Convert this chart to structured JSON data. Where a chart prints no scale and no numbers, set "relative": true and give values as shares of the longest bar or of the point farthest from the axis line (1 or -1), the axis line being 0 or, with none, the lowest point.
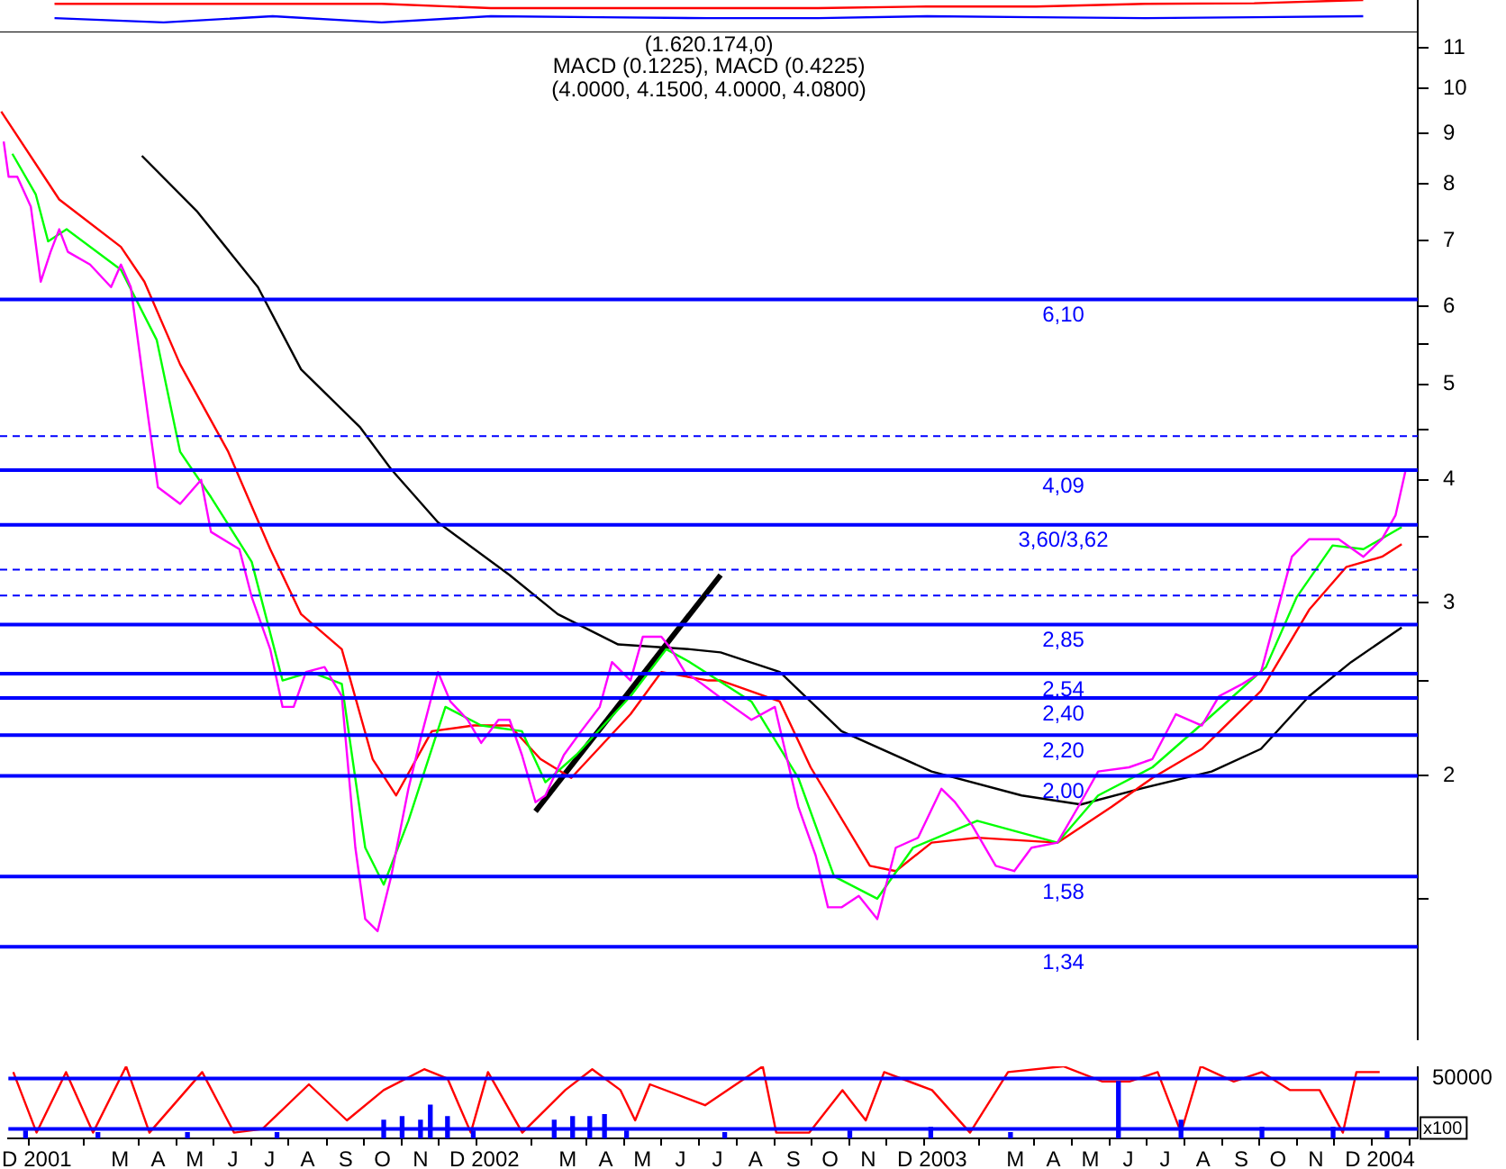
{
  "chart_data": [
    {
      "type": "line",
      "relative": true,
      "tick_labels": false,
      "grid": false,
      "legend": false,
      "categories": [
        null,
        null,
        null,
        null,
        null,
        null,
        null,
        null,
        null,
        null,
        null,
        null,
        null
      ],
      "series": [
        {
          "color": "#ff0000",
          "values": [
            0.88,
            0.88,
            0.88,
            0.88,
            0.75,
            0.75,
            0.75,
            0.75,
            0.8,
            0.8,
            0.88,
            0.9,
            1
          ]
        },
        {
          "color": "#0000ff",
          "values": [
            0.44,
            0.31,
            0.5,
            0.31,
            0.5,
            0.47,
            0.44,
            0.44,
            0.5,
            0.47,
            0.44,
            0.47,
            0.5
          ]
        }
      ]
    },
    {
      "type": "line",
      "title": "(4.0000, 4.1500, 4.0000, 4.0800)",
      "annotations": [
        "(1.620.174,0)",
        "MACD (0.1225), MACD (0.4225)"
      ],
      "log": true,
      "grid": false,
      "legend": false,
      "tick_labels": "y",
      "xlim": [
        "2000-11-30",
        "2004-01-23"
      ],
      "ylim": [
        1.08,
        11.4
      ],
      "yticks": [
        {
          "value": 1.5,
          "label": null
        },
        2,
        {
          "value": 2.5,
          "label": null
        },
        3,
        {
          "value": 3.5,
          "label": null
        },
        4,
        {
          "value": 4.5,
          "label": null
        },
        5,
        {
          "value": 5.5,
          "label": null
        },
        6,
        7,
        8,
        9,
        10,
        11
      ],
      "ref_lines": [
        {
          "axis": "y",
          "value": 6.1,
          "label": "6,10",
          "color": "#0000ff"
        },
        {
          "axis": "y",
          "value": 4.43,
          "color": "#0000ff",
          "line_style": "dashed"
        },
        {
          "axis": "y",
          "value": 4.09,
          "label": "4,09",
          "color": "#0000ff"
        },
        {
          "axis": "y",
          "value": 3.6,
          "label": "3,60/3,62",
          "color": "#0000ff"
        },
        {
          "axis": "y",
          "value": 3.24,
          "color": "#0000ff",
          "line_style": "dashed"
        },
        {
          "axis": "y",
          "value": 3.05,
          "color": "#0000ff",
          "line_style": "dashed"
        },
        {
          "axis": "y",
          "value": 2.85,
          "label": "2,85",
          "color": "#0000ff"
        },
        {
          "axis": "y",
          "value": 2.54,
          "label": "2,54",
          "color": "#0000ff"
        },
        {
          "axis": "y",
          "value": 2.4,
          "label": "2,40",
          "color": "#0000ff"
        },
        {
          "axis": "y",
          "value": 2.2,
          "label": "2,20",
          "color": "#0000ff"
        },
        {
          "axis": "y",
          "value": 2.0,
          "label": "2,00",
          "color": "#0000ff"
        },
        {
          "axis": "y",
          "value": 1.58,
          "label": "1,58",
          "color": "#0000ff"
        },
        {
          "axis": "y",
          "value": 1.34,
          "label": "1,34",
          "color": "#0000ff"
        }
      ],
      "series": [
        {
          "color": "#ff00ff",
          "x": [
            "2000-12-03",
            "2000-12-07",
            "2000-12-14",
            "2000-12-25",
            "2001-01-02",
            "2001-01-10",
            "2001-01-17",
            "2001-01-24",
            "2001-02-11",
            "2001-02-28",
            "2001-03-08",
            "2001-03-16",
            "2001-03-30",
            "2001-04-07",
            "2001-04-25",
            "2001-05-12",
            "2001-05-20",
            "2001-06-12",
            "2001-06-22",
            "2001-07-07",
            "2001-07-17",
            "2001-07-26",
            "2001-08-05",
            "2001-08-20",
            "2001-09-03",
            "2001-09-14",
            "2001-09-22",
            "2001-10-02",
            "2001-10-13",
            "2001-10-27",
            "2001-11-05",
            "2001-11-20",
            "2001-11-30",
            "2001-12-14",
            "2001-12-25",
            "2002-01-08",
            "2002-01-17",
            "2002-01-27",
            "2002-02-07",
            "2002-02-15",
            "2002-03-02",
            "2002-03-16",
            "2002-03-31",
            "2002-04-10",
            "2002-04-25",
            "2002-05-05",
            "2002-05-20",
            "2002-05-28",
            "2002-06-08",
            "2002-06-22",
            "2002-07-11",
            "2002-08-01",
            "2002-08-20",
            "2002-09-08",
            "2002-09-22",
            "2002-10-02",
            "2002-10-13",
            "2002-10-27",
            "2002-11-11",
            "2002-11-26",
            "2002-12-14",
            "2003-01-02",
            "2003-01-13",
            "2003-01-27",
            "2003-02-15",
            "2003-03-02",
            "2003-03-16",
            "2003-04-06",
            "2003-04-25",
            "2003-05-09",
            "2003-06-03",
            "2003-06-22",
            "2003-07-11",
            "2003-08-01",
            "2003-08-15",
            "2003-09-03",
            "2003-09-18",
            "2003-09-28",
            "2003-10-13",
            "2003-10-27",
            "2003-11-20",
            "2003-12-10",
            "2003-12-25",
            "2004-01-05",
            "2004-01-13"
          ],
          "values": [
            8.83,
            8.13,
            8.13,
            7.58,
            6.36,
            6.82,
            7.19,
            6.82,
            6.62,
            6.28,
            6.62,
            6.28,
            4.64,
            3.93,
            3.78,
            4.0,
            3.54,
            3.4,
            3.04,
            2.69,
            2.35,
            2.35,
            2.55,
            2.58,
            2.41,
            1.69,
            1.43,
            1.39,
            1.58,
            1.94,
            2.16,
            2.55,
            2.38,
            2.28,
            2.16,
            2.28,
            2.28,
            2.1,
            1.88,
            1.91,
            2.1,
            2.22,
            2.35,
            2.61,
            2.5,
            2.77,
            2.77,
            2.69,
            2.55,
            2.48,
            2.38,
            2.28,
            2.35,
            1.86,
            1.66,
            1.47,
            1.47,
            1.51,
            1.43,
            1.69,
            1.73,
            1.94,
            1.88,
            1.78,
            1.62,
            1.6,
            1.69,
            1.71,
            1.88,
            2.02,
            2.04,
            2.08,
            2.31,
            2.25,
            2.41,
            2.48,
            2.55,
            2.84,
            3.34,
            3.48,
            3.48,
            3.34,
            3.48,
            3.68,
            4.08
          ]
        },
        {
          "color": "#00ff00",
          "x": [
            "2000-12-10",
            "2000-12-29",
            "2001-01-08",
            "2001-01-23",
            "2001-03-08",
            "2001-04-06",
            "2001-04-25",
            "2001-05-20",
            "2001-06-22",
            "2001-07-17",
            "2001-08-09",
            "2001-09-03",
            "2001-09-22",
            "2001-10-07",
            "2001-10-27",
            "2001-11-26",
            "2001-12-25",
            "2002-01-27",
            "2002-02-15",
            "2002-03-12",
            "2002-04-25",
            "2002-05-24",
            "2002-06-12",
            "2002-08-01",
            "2002-09-08",
            "2002-10-07",
            "2002-11-11",
            "2002-12-10",
            "2003-01-31",
            "2003-04-06",
            "2003-05-09",
            "2003-06-22",
            "2003-08-05",
            "2003-09-22",
            "2003-10-17",
            "2003-11-15",
            "2003-12-10",
            "2004-01-10"
          ],
          "values": [
            8.58,
            7.8,
            6.99,
            7.19,
            6.54,
            5.55,
            4.27,
            3.84,
            3.3,
            2.5,
            2.55,
            2.48,
            1.69,
            1.55,
            1.8,
            2.35,
            2.25,
            2.22,
            1.97,
            2.1,
            2.41,
            2.69,
            2.61,
            2.38,
            1.99,
            1.58,
            1.5,
            1.69,
            1.8,
            1.71,
            1.91,
            2.04,
            2.28,
            2.58,
            3.04,
            3.43,
            3.4,
            3.58
          ]
        },
        {
          "color": "#ff0000",
          "x": [
            "2000-12-01",
            "2001-01-17",
            "2001-03-08",
            "2001-03-27",
            "2001-04-25",
            "2001-06-03",
            "2001-07-07",
            "2001-08-01",
            "2001-09-03",
            "2001-09-28",
            "2001-10-17",
            "2001-11-15",
            "2001-12-19",
            "2002-01-17",
            "2002-02-11",
            "2002-03-08",
            "2002-04-25",
            "2002-05-20",
            "2002-06-27",
            "2002-07-07",
            "2002-08-24",
            "2002-09-18",
            "2002-11-05",
            "2002-11-26",
            "2002-12-25",
            "2003-01-31",
            "2003-04-06",
            "2003-05-20",
            "2003-06-22",
            "2003-08-01",
            "2003-09-18",
            "2003-10-27",
            "2003-11-26",
            "2003-12-25",
            "2004-01-10"
          ],
          "values": [
            9.47,
            7.71,
            6.9,
            6.36,
            5.24,
            4.27,
            3.4,
            2.92,
            2.69,
            2.08,
            1.91,
            2.22,
            2.25,
            2.25,
            2.08,
            1.99,
            2.31,
            2.55,
            2.5,
            2.5,
            2.38,
            2.04,
            1.62,
            1.6,
            1.71,
            1.73,
            1.71,
            1.86,
            1.99,
            2.13,
            2.44,
            2.95,
            3.26,
            3.34,
            3.44
          ]
        },
        {
          "color": "#000000",
          "x": [
            "2001-03-25",
            "2001-05-09",
            "2001-06-27",
            "2001-08-01",
            "2001-09-18",
            "2001-10-13",
            "2001-11-20",
            "2002-01-17",
            "2002-02-25",
            "2002-04-15",
            "2002-06-12",
            "2002-07-07",
            "2002-08-24",
            "2002-10-13",
            "2002-12-25",
            "2003-03-08",
            "2003-04-25",
            "2003-06-12",
            "2003-08-09",
            "2003-09-18",
            "2003-10-27",
            "2003-11-30",
            "2004-01-10"
          ],
          "values": [
            8.54,
            7.49,
            6.28,
            5.18,
            4.52,
            4.1,
            3.62,
            3.2,
            2.92,
            2.72,
            2.69,
            2.67,
            2.55,
            2.22,
            2.02,
            1.91,
            1.87,
            1.94,
            2.02,
            2.13,
            2.41,
            2.61,
            2.83
          ]
        },
        {
          "type": "line",
          "color": "#000000",
          "x": [
            "2002-02-07",
            "2002-07-07"
          ],
          "values": [
            1.84,
            3.2
          ]
        }
      ]
    },
    {
      "type": "line",
      "relative": true,
      "tick_labels": "x",
      "grid": false,
      "legend": false,
      "annotations": [
        "50000",
        "x100"
      ],
      "xlim": [
        "2000-11-30",
        "2004-01-23"
      ],
      "xticks": [
        {
          "value": "2000-12",
          "label": "D"
        },
        {
          "value": "2001-01",
          "label": "2001"
        },
        {
          "value": "2001-03",
          "label": "M"
        },
        {
          "value": "2001-04",
          "label": "A"
        },
        {
          "value": "2001-05",
          "label": "M"
        },
        {
          "value": "2001-06",
          "label": "J"
        },
        {
          "value": "2001-07",
          "label": "J"
        },
        {
          "value": "2001-08",
          "label": "A"
        },
        {
          "value": "2001-09",
          "label": "S"
        },
        {
          "value": "2001-10",
          "label": "O"
        },
        {
          "value": "2001-11",
          "label": "N"
        },
        {
          "value": "2001-12",
          "label": "D"
        },
        {
          "value": "2002-01",
          "label": "2002"
        },
        {
          "value": "2002-03",
          "label": "M"
        },
        {
          "value": "2002-04",
          "label": "A"
        },
        {
          "value": "2002-05",
          "label": "M"
        },
        {
          "value": "2002-06",
          "label": "J"
        },
        {
          "value": "2002-07",
          "label": "J"
        },
        {
          "value": "2002-08",
          "label": "A"
        },
        {
          "value": "2002-09",
          "label": "S"
        },
        {
          "value": "2002-10",
          "label": "O"
        },
        {
          "value": "2002-11",
          "label": "N"
        },
        {
          "value": "2002-12",
          "label": "D"
        },
        {
          "value": "2003-01",
          "label": "2003"
        },
        {
          "value": "2003-03",
          "label": "M"
        },
        {
          "value": "2003-04",
          "label": "A"
        },
        {
          "value": "2003-05",
          "label": "M"
        },
        {
          "value": "2003-06",
          "label": "J"
        },
        {
          "value": "2003-07",
          "label": "J"
        },
        {
          "value": "2003-08",
          "label": "A"
        },
        {
          "value": "2003-09",
          "label": "S"
        },
        {
          "value": "2003-10",
          "label": "O"
        },
        {
          "value": "2003-11",
          "label": "N"
        },
        {
          "value": "2003-12",
          "label": "D"
        },
        {
          "value": "2004-01",
          "label": "2004"
        }
      ],
      "ref_lines": [
        {
          "axis": "y",
          "value": 0.83,
          "color": "#0000ff"
        },
        {
          "axis": "y",
          "value": 0.13,
          "color": "#0000ff"
        }
      ],
      "series": [
        {
          "type": "bar",
          "color": "#0000ff",
          "x": [
            "2000-12-14",
            "2001-02-11",
            "2001-04-25",
            "2001-07-07",
            "2001-10-02",
            "2001-10-17",
            "2001-11-01",
            "2001-11-09",
            "2001-11-23",
            "2001-12-14",
            "2002-02-18",
            "2002-03-05",
            "2002-03-19",
            "2002-03-31",
            "2002-04-18",
            "2002-07-07",
            "2002-10-17",
            "2002-12-22",
            "2003-02-25",
            "2003-05-24",
            "2003-07-14",
            "2003-09-18",
            "2003-11-15",
            "2003-12-29"
          ],
          "values": [
            0.1,
            0.08,
            0.08,
            0.08,
            0.25,
            0.3,
            0.25,
            0.46,
            0.3,
            0.1,
            0.25,
            0.3,
            0.3,
            0.33,
            0.1,
            0.08,
            0.1,
            0.15,
            0.08,
            0.79,
            0.25,
            0.15,
            0.15,
            0.1
          ]
        },
        {
          "color": "#ff0000",
          "x": [
            "2000-12-04",
            "2000-12-23",
            "2001-01-16",
            "2001-02-07",
            "2001-03-06",
            "2001-03-25",
            "2001-05-07",
            "2001-06-02",
            "2001-06-25",
            "2001-08-02",
            "2001-09-02",
            "2001-10-02",
            "2001-11-04",
            "2001-11-23",
            "2001-12-12",
            "2001-12-26",
            "2002-01-23",
            "2002-02-27",
            "2002-03-21",
            "2002-04-13",
            "2002-04-25",
            "2002-05-07",
            "2002-06-21",
            "2002-08-07",
            "2002-08-18",
            "2002-09-14",
            "2002-10-11",
            "2002-10-30",
            "2002-11-14",
            "2002-12-23",
            "2003-01-23",
            "2003-02-23",
            "2003-04-09",
            "2003-05-11",
            "2003-06-02",
            "2003-06-25",
            "2003-07-14",
            "2003-07-30",
            "2003-08-26",
            "2003-09-18",
            "2003-10-11",
            "2003-11-04",
            "2003-11-23",
            "2003-12-04",
            "2003-12-23"
          ],
          "values": [
            0.92,
            0.08,
            0.92,
            0.08,
            1,
            0.08,
            0.92,
            0.08,
            0.13,
            0.75,
            0.25,
            0.67,
            0.96,
            0.83,
            0.08,
            0.92,
            0.08,
            0.67,
            0.96,
            0.67,
            0.25,
            0.75,
            0.46,
            1,
            0.08,
            0.08,
            0.67,
            0.25,
            0.92,
            0.67,
            0.08,
            0.92,
            1,
            0.79,
            0.79,
            0.92,
            0.08,
            1,
            0.79,
            0.92,
            0.67,
            0.67,
            0.08,
            0.92,
            0.92
          ]
        }
      ]
    }
  ]
}
